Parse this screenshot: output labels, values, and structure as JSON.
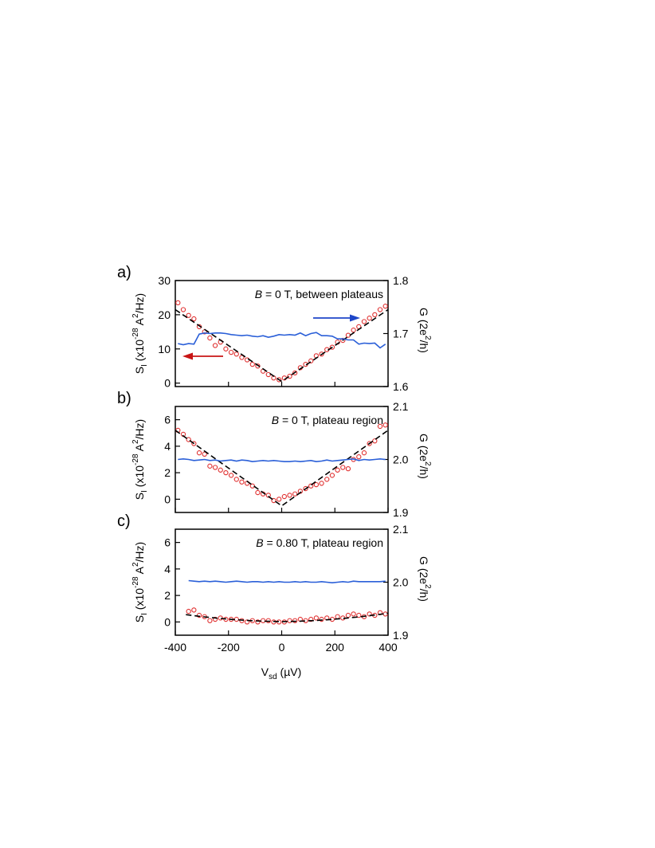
{
  "figure": {
    "shared_xlabel": "V",
    "shared_xlabel_sub": "sd",
    "shared_xlabel_unit": "(µV)",
    "x_ticks": [
      "-400",
      "-200",
      "0",
      "200",
      "400"
    ]
  },
  "colors": {
    "noise_points": "#e03030",
    "conductance_line": "#2a5fd8",
    "fit_line": "#000000",
    "arrow_left": "#c81414",
    "arrow_right": "#1e46c8"
  },
  "chart_data": [
    {
      "panel_label": "a)",
      "type": "line",
      "annotation_italic": "B",
      "annotation_rest": " = 0 T, between plateaus",
      "ylabel_left": {
        "main": "S",
        "sub": "I",
        "rest": " (x10",
        "exp": "-28",
        "after": " A",
        "exp2": "2",
        "end": "/Hz)"
      },
      "ylabel_right": {
        "main": "G (2e",
        "exp": "2",
        "end": "/h)"
      },
      "xlim": [
        -400,
        400
      ],
      "ylim_left": [
        -1,
        30
      ],
      "ylim_right": [
        1.6,
        1.8
      ],
      "yticks_left": [
        "0",
        "10",
        "20",
        "30"
      ],
      "yticks_right": [
        "1.6",
        "1.7",
        "1.8"
      ],
      "arrows": [
        "left",
        "right"
      ],
      "series": [
        {
          "kind": "points",
          "axis": "left",
          "x": [
            -390,
            -370,
            -350,
            -330,
            -310,
            -290,
            -270,
            -250,
            -230,
            -210,
            -190,
            -170,
            -150,
            -130,
            -110,
            -90,
            -70,
            -50,
            -30,
            -10,
            10,
            30,
            50,
            70,
            90,
            110,
            130,
            150,
            170,
            190,
            210,
            230,
            250,
            270,
            290,
            310,
            330,
            350,
            370,
            390
          ],
          "y": [
            23.5,
            21.5,
            19.8,
            18.8,
            16.5,
            15.0,
            13.2,
            11.0,
            12.0,
            10.0,
            9.0,
            8.5,
            7.5,
            6.8,
            5.5,
            5.0,
            3.5,
            2.5,
            1.5,
            1.0,
            1.5,
            2.0,
            3.0,
            4.5,
            5.5,
            6.5,
            8.0,
            8.5,
            9.8,
            10.5,
            12.0,
            12.5,
            14.0,
            15.5,
            16.5,
            18.0,
            19.0,
            20.0,
            21.5,
            22.5
          ]
        },
        {
          "kind": "fit",
          "axis": "left",
          "x": [
            -400,
            0,
            400
          ],
          "y": [
            21.5,
            0.5,
            21.5
          ]
        },
        {
          "kind": "line",
          "axis": "right",
          "x": [
            -390,
            -370,
            -350,
            -330,
            -310,
            -290,
            -270,
            -250,
            -230,
            -210,
            -190,
            -170,
            -150,
            -130,
            -110,
            -90,
            -70,
            -50,
            -30,
            -10,
            10,
            30,
            50,
            70,
            90,
            110,
            130,
            150,
            170,
            190,
            210,
            230,
            250,
            270,
            290,
            310,
            330,
            350,
            370,
            390
          ],
          "y": [
            1.681,
            1.679,
            1.681,
            1.68,
            1.699,
            1.701,
            1.7,
            1.701,
            1.701,
            1.7,
            1.698,
            1.697,
            1.696,
            1.697,
            1.695,
            1.694,
            1.696,
            1.693,
            1.695,
            1.698,
            1.697,
            1.698,
            1.697,
            1.701,
            1.696,
            1.7,
            1.702,
            1.696,
            1.696,
            1.695,
            1.69,
            1.69,
            1.688,
            1.688,
            1.68,
            1.682,
            1.681,
            1.682,
            1.673,
            1.68
          ]
        }
      ]
    },
    {
      "panel_label": "b)",
      "type": "line",
      "annotation_italic": "B",
      "annotation_rest": " = 0 T, plateau region",
      "ylabel_left": {
        "main": "S",
        "sub": "I",
        "rest": " (x10",
        "exp": "-28",
        "after": " A",
        "exp2": "2",
        "end": "/Hz)"
      },
      "ylabel_right": {
        "main": "G (2e",
        "exp": "2",
        "end": "/h)"
      },
      "xlim": [
        -400,
        400
      ],
      "ylim_left": [
        -1,
        7
      ],
      "ylim_right": [
        1.9,
        2.1
      ],
      "yticks_left": [
        "0",
        "2",
        "4",
        "6"
      ],
      "yticks_right": [
        "1.9",
        "2.0",
        "2.1"
      ],
      "arrows": [],
      "series": [
        {
          "kind": "points",
          "axis": "left",
          "x": [
            -390,
            -370,
            -350,
            -330,
            -310,
            -290,
            -270,
            -250,
            -230,
            -210,
            -190,
            -170,
            -150,
            -130,
            -110,
            -90,
            -70,
            -50,
            -30,
            -10,
            10,
            30,
            50,
            70,
            90,
            110,
            130,
            150,
            170,
            190,
            210,
            230,
            250,
            270,
            290,
            310,
            330,
            350,
            370,
            390
          ],
          "y": [
            5.2,
            4.9,
            4.5,
            4.2,
            3.5,
            3.4,
            2.5,
            2.4,
            2.2,
            2.0,
            1.8,
            1.5,
            1.3,
            1.2,
            1.0,
            0.5,
            0.4,
            0.3,
            -0.1,
            0.0,
            0.2,
            0.3,
            0.4,
            0.6,
            0.8,
            1.0,
            1.1,
            1.2,
            1.5,
            1.8,
            2.2,
            2.4,
            2.3,
            3.0,
            3.2,
            3.5,
            4.2,
            4.4,
            5.5,
            5.6
          ]
        },
        {
          "kind": "fit",
          "axis": "left",
          "x": [
            -400,
            0,
            400
          ],
          "y": [
            5.2,
            -0.5,
            5.2
          ]
        },
        {
          "kind": "line",
          "axis": "right",
          "x": [
            -390,
            -370,
            -350,
            -330,
            -310,
            -290,
            -270,
            -250,
            -230,
            -210,
            -190,
            -170,
            -150,
            -130,
            -110,
            -90,
            -70,
            -50,
            -30,
            -10,
            10,
            30,
            50,
            70,
            90,
            110,
            130,
            150,
            170,
            190,
            210,
            230,
            250,
            270,
            290,
            310,
            330,
            350,
            370,
            390
          ],
          "y": [
            2.0,
            2.001,
            2.0,
            1.998,
            1.999,
            2.0,
            1.998,
            1.999,
            1.997,
            1.998,
            1.999,
            1.997,
            1.999,
            1.998,
            1.996,
            1.997,
            1.998,
            1.997,
            1.998,
            1.997,
            1.996,
            1.996,
            1.997,
            1.996,
            1.997,
            1.998,
            1.996,
            1.997,
            1.999,
            1.997,
            1.998,
            1.999,
            2.0,
            2.001,
            1.998,
            2.0,
            1.999,
            2.0,
            2.001,
            2.0
          ]
        }
      ]
    },
    {
      "panel_label": "c)",
      "type": "line",
      "annotation_italic": "B",
      "annotation_rest": " = 0.80 T, plateau region",
      "ylabel_left": {
        "main": "S",
        "sub": "I",
        "rest": " (x10",
        "exp": "-28",
        "after": " A",
        "exp2": "2",
        "end": "/Hz)"
      },
      "ylabel_right": {
        "main": "G (2e",
        "exp": "2",
        "end": "/h)"
      },
      "xlim": [
        -400,
        400
      ],
      "ylim_left": [
        -1,
        7
      ],
      "ylim_right": [
        1.9,
        2.1
      ],
      "yticks_left": [
        "0",
        "2",
        "4",
        "6"
      ],
      "yticks_right": [
        "1.9",
        "2.0",
        "2.1"
      ],
      "arrows": [],
      "series": [
        {
          "kind": "points",
          "axis": "left",
          "x": [
            -350,
            -330,
            -310,
            -290,
            -270,
            -250,
            -230,
            -210,
            -190,
            -170,
            -150,
            -130,
            -110,
            -90,
            -70,
            -50,
            -30,
            -10,
            10,
            30,
            50,
            70,
            90,
            110,
            130,
            150,
            170,
            190,
            210,
            230,
            250,
            270,
            290,
            310,
            330,
            350,
            370,
            390
          ],
          "y": [
            0.8,
            0.9,
            0.5,
            0.4,
            0.1,
            0.2,
            0.3,
            0.2,
            0.2,
            0.2,
            0.1,
            0.0,
            0.1,
            0.0,
            0.1,
            0.1,
            0.0,
            0.0,
            0.0,
            0.1,
            0.1,
            0.2,
            0.1,
            0.2,
            0.3,
            0.2,
            0.3,
            0.2,
            0.4,
            0.3,
            0.5,
            0.6,
            0.5,
            0.4,
            0.6,
            0.5,
            0.7,
            0.6
          ]
        },
        {
          "kind": "fit",
          "axis": "left",
          "x": [
            -360,
            -300,
            -240,
            -180,
            -120,
            -60,
            0,
            60,
            120,
            180,
            240,
            300,
            360,
            400
          ],
          "y": [
            0.55,
            0.4,
            0.28,
            0.18,
            0.1,
            0.05,
            0.03,
            0.05,
            0.1,
            0.18,
            0.28,
            0.4,
            0.55,
            0.65
          ]
        },
        {
          "kind": "line",
          "axis": "right",
          "x": [
            -350,
            -330,
            -310,
            -290,
            -270,
            -250,
            -230,
            -210,
            -190,
            -170,
            -150,
            -130,
            -110,
            -90,
            -70,
            -50,
            -30,
            -10,
            10,
            30,
            50,
            70,
            90,
            110,
            130,
            150,
            170,
            190,
            210,
            230,
            250,
            270,
            290,
            310,
            330,
            350,
            370,
            390
          ],
          "y": [
            2.003,
            2.002,
            2.001,
            2.002,
            2.001,
            2.002,
            2.001,
            2.0,
            2.001,
            2.002,
            2.001,
            2.0,
            2.001,
            2.001,
            2.0,
            2.001,
            2.0,
            2.001,
            2.0,
            2.0,
            2.001,
            2.0,
            2.001,
            2.0,
            2.0,
            2.001,
            2.0,
            1.999,
            2.0,
            2.001,
            2.0,
            2.002,
            2.001,
            2.001,
            2.001,
            2.001,
            2.001,
            2.002
          ]
        }
      ]
    }
  ]
}
